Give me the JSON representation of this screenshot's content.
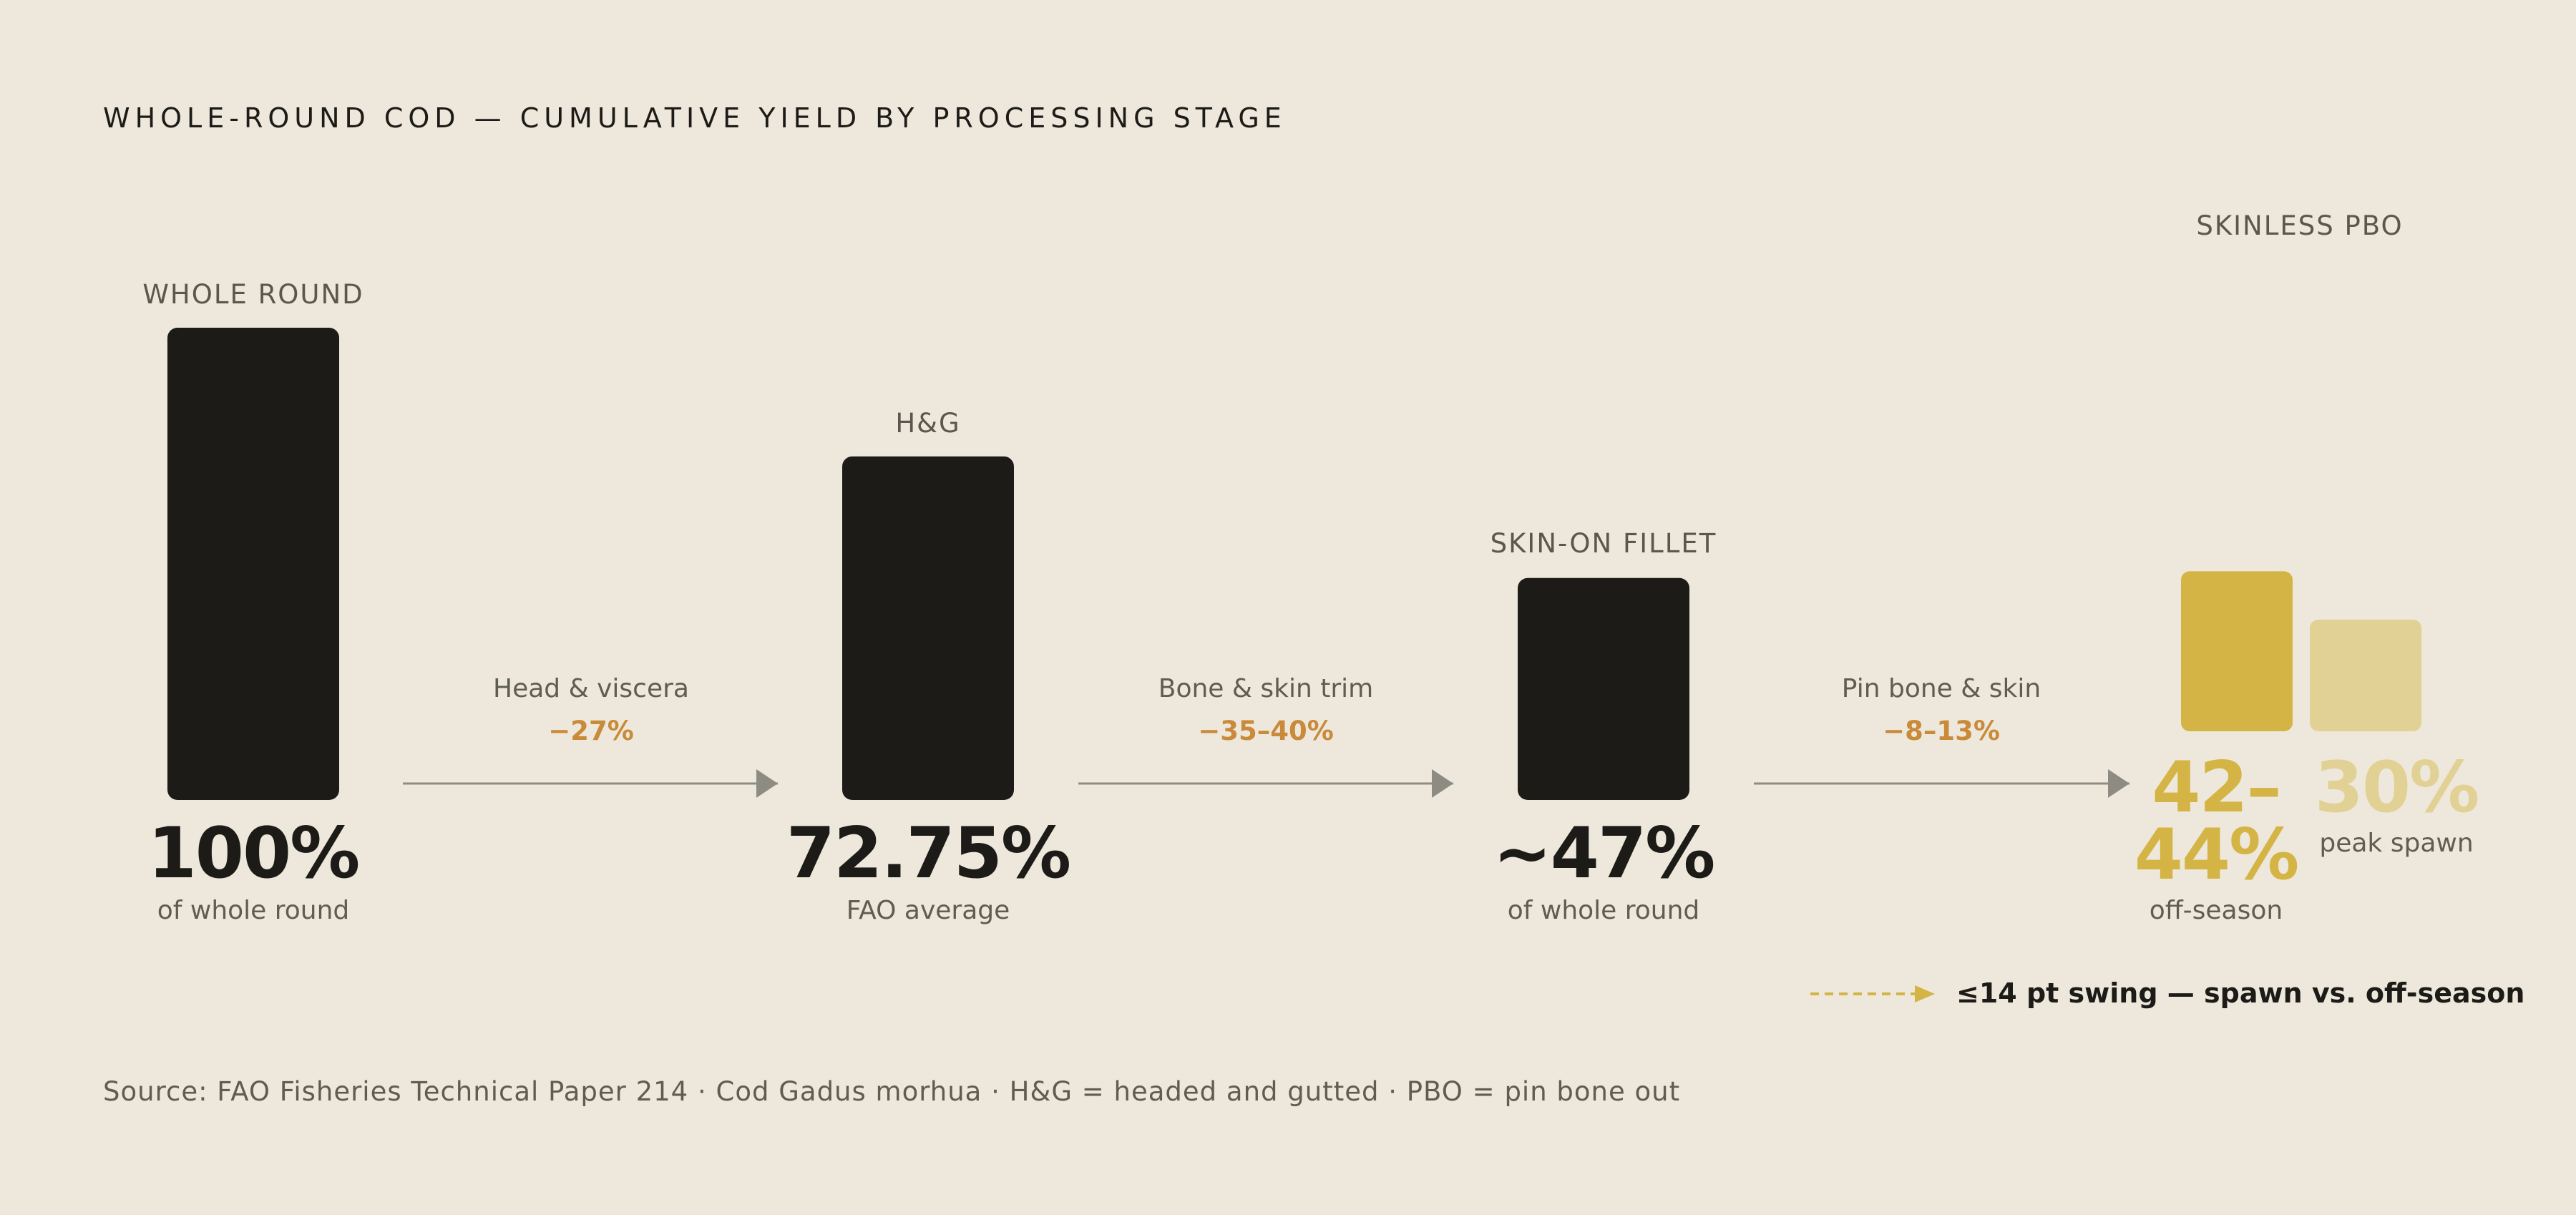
{
  "colors": {
    "background": "#ede8db",
    "bar": "#1c1b17",
    "arrow": "#8e8b82",
    "reduction": "#c98a3a",
    "off_season": "#d4b444",
    "peak_spawn": "#e2d194"
  },
  "chart_data": {
    "type": "bar",
    "title": "WHOLE-ROUND COD — CUMULATIVE YIELD BY PROCESSING STAGE",
    "ylim": [
      0,
      100
    ],
    "grid": false,
    "stages": [
      {
        "label": "WHOLE ROUND",
        "value": 100,
        "display": "100%",
        "note": "of whole round"
      },
      {
        "label": "H&G",
        "value": 72.75,
        "display": "72.75%",
        "note": "FAO average"
      },
      {
        "label": "SKIN-ON FILLET",
        "value": 47,
        "display": "~47%",
        "note": "of whole round"
      }
    ],
    "steps": [
      {
        "label": "Head & viscera",
        "change": "−27%"
      },
      {
        "label": "Bone & skin trim",
        "change": "−35–40%"
      },
      {
        "label": "Pin bone & skin",
        "change": "−8–13%"
      }
    ],
    "final_stage": {
      "label": "SKINLESS PBO",
      "series": [
        {
          "name": "off-season",
          "value": 43,
          "display_line1": "42–",
          "display_line2": "44%",
          "note": "off-season"
        },
        {
          "name": "peak spawn",
          "value": 30,
          "display_line1": "30%",
          "display_line2": "",
          "note": "peak spawn"
        }
      ]
    },
    "legend": {
      "text": "≤14 pt swing — spawn vs. off-season",
      "position": "bottom-right"
    },
    "source": "Source: FAO Fisheries Technical Paper 214 · Cod Gadus morhua · H&G = headed and gutted · PBO = pin bone out"
  }
}
